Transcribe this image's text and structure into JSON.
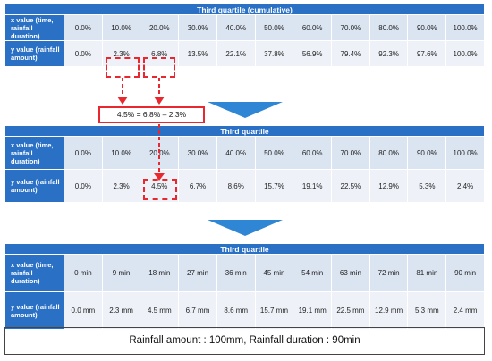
{
  "table1": {
    "title": "Third quartile (cumulative)",
    "x_label": "x value (time, rainfall duration)",
    "y_label": "y value (rainfall amount)",
    "x_values": [
      "0.0%",
      "10.0%",
      "20.0%",
      "30.0%",
      "40.0%",
      "50.0%",
      "60.0%",
      "70.0%",
      "80.0%",
      "90.0%",
      "100.0%"
    ],
    "y_values": [
      "0.0%",
      "2.3%",
      "6.8%",
      "13.5%",
      "22.1%",
      "37.8%",
      "56.9%",
      "79.4%",
      "92.3%",
      "97.6%",
      "100.0%"
    ]
  },
  "callout": "4.5% = 6.8% – 2.3%",
  "table2": {
    "title": "Third quartile",
    "x_label": "x value (time, rainfall duration)",
    "y_label": "y value (rainfall amount)",
    "x_values": [
      "0.0%",
      "10.0%",
      "20.0%",
      "30.0%",
      "40.0%",
      "50.0%",
      "60.0%",
      "70.0%",
      "80.0%",
      "90.0%",
      "100.0%"
    ],
    "y_values": [
      "0.0%",
      "2.3%",
      "4.5%",
      "6.7%",
      "8.6%",
      "15.7%",
      "19.1%",
      "22.5%",
      "12.9%",
      "5.3%",
      "2.4%"
    ]
  },
  "table3": {
    "title": "Third quartile",
    "x_label": "x value (time, rainfall duration)",
    "y_label": "y value (rainfall amount)",
    "x_values": [
      "0 min",
      "9 min",
      "18 min",
      "27 min",
      "36 min",
      "45 min",
      "54 min",
      "63 min",
      "72 min",
      "81 min",
      "90 min"
    ],
    "y_values": [
      "0.0 mm",
      "2.3 mm",
      "4.5 mm",
      "6.7 mm",
      "8.6 mm",
      "15.7 mm",
      "19.1 mm",
      "22.5 mm",
      "12.9 mm",
      "5.3 mm",
      "2.4 mm"
    ]
  },
  "footer": "Rainfall  amount :  100mm, Rainfall duration  : 90min",
  "colors": {
    "header_blue": "#2a70c5",
    "row_light": "#dbe4f1",
    "row_lighter": "#eef2f8",
    "highlight_red": "#e8282e",
    "arrow_blue": "#2f86d4"
  }
}
